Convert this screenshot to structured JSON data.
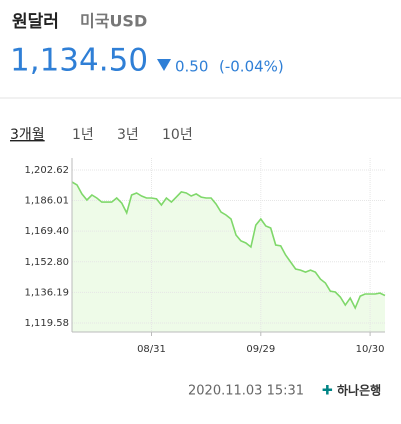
{
  "header": {
    "title": "원달러",
    "subtitle": "미국USD",
    "price": "1,134.50",
    "change": "0.50",
    "change_pct": "(-0.04%)"
  },
  "tabs": [
    "3개월",
    "1년",
    "3년",
    "10년"
  ],
  "chart_data": {
    "type": "line",
    "categories": [
      null,
      null,
      null,
      null,
      null,
      null,
      null,
      null,
      null,
      null,
      null,
      null,
      null,
      null,
      null,
      null,
      "08/31",
      null,
      null,
      null,
      null,
      null,
      null,
      null,
      null,
      null,
      null,
      null,
      null,
      null,
      null,
      null,
      null,
      null,
      null,
      null,
      null,
      null,
      "09/29",
      null,
      null,
      null,
      null,
      null,
      null,
      null,
      null,
      null,
      null,
      null,
      null,
      null,
      null,
      null,
      null,
      null,
      null,
      null,
      null,
      null,
      "10/30",
      null,
      null,
      null
    ],
    "series": [
      {
        "color": "#7fd86a",
        "values": [
          1196.1,
          1194.5,
          1189.6,
          1186.3,
          1189.0,
          1187.4,
          1185.2,
          1185.2,
          1185.2,
          1187.4,
          1184.7,
          1179.3,
          1189.0,
          1190.1,
          1188.5,
          1187.4,
          1187.4,
          1186.9,
          1183.6,
          1187.4,
          1185.2,
          1187.9,
          1190.7,
          1190.1,
          1188.5,
          1189.6,
          1187.9,
          1187.4,
          1187.4,
          1184.1,
          1179.8,
          1178.2,
          1176.0,
          1167.3,
          1164.1,
          1163.0,
          1160.8,
          1172.7,
          1176.0,
          1172.2,
          1171.1,
          1161.9,
          1161.4,
          1156.5,
          1152.7,
          1148.9,
          1148.3,
          1147.2,
          1148.3,
          1147.2,
          1143.4,
          1141.3,
          1136.9,
          1136.4,
          1133.7,
          1129.3,
          1133.1,
          1127.7,
          1134.2,
          1135.3,
          1135.3,
          1135.3,
          1135.8,
          1134.5
        ]
      }
    ],
    "area_color": "#eefbe8",
    "ylim": [
      1114.7,
      1209.1
    ],
    "yticks": [
      {
        "value": 1119.58,
        "label": "1,119.58"
      },
      {
        "value": 1136.19,
        "label": "1,136.19"
      },
      {
        "value": 1152.8,
        "label": "1,152.80"
      },
      {
        "value": 1169.4,
        "label": "1,169.40"
      },
      {
        "value": 1186.01,
        "label": "1,186.01"
      },
      {
        "value": 1202.62,
        "label": "1,202.62"
      }
    ],
    "grid": true
  },
  "footer": {
    "timestamp": "2020.11.03 15:31",
    "source": "하나은행"
  }
}
